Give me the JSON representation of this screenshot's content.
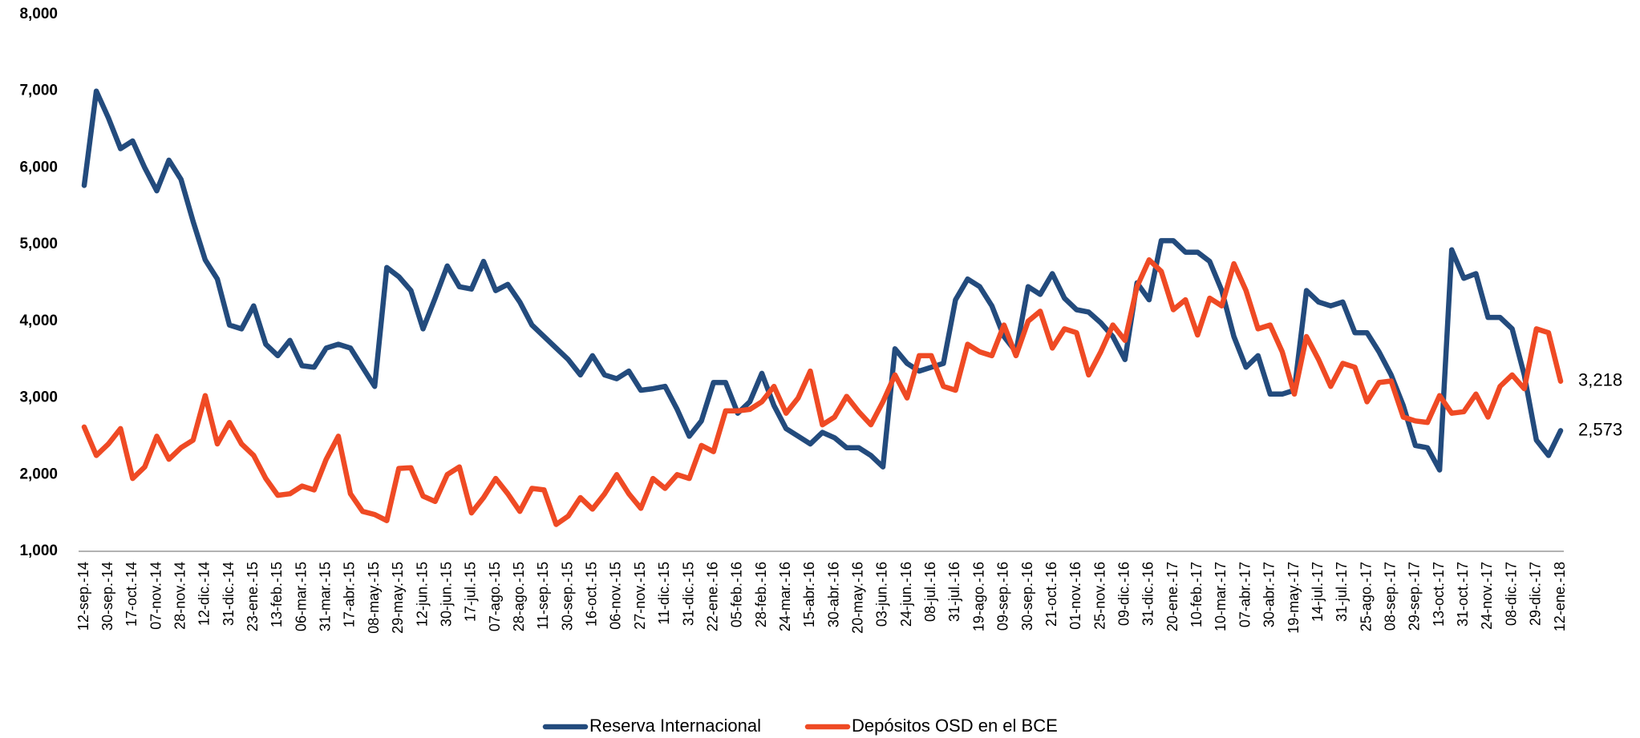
{
  "chart_data": {
    "type": "line",
    "categories": [
      "12-sep.-14",
      null,
      "30-sep.-14",
      null,
      "17-oct.-14",
      null,
      "07-nov.-14",
      null,
      "28-nov.-14",
      null,
      "12-dic.-14",
      null,
      "31-dic.-14",
      null,
      "23-ene.-15",
      null,
      "13-feb.-15",
      null,
      "06-mar.-15",
      null,
      "31-mar.-15",
      null,
      "17-abr.-15",
      null,
      "08-may.-15",
      null,
      "29-may.-15",
      null,
      "12-jun.-15",
      null,
      "30-jun.-15",
      null,
      "17-jul.-15",
      null,
      "07-ago.-15",
      null,
      "28-ago.-15",
      null,
      "11-sep.-15",
      null,
      "30-sep.-15",
      null,
      "16-oct.-15",
      null,
      "06-nov.-15",
      null,
      "27-nov.-15",
      null,
      "11-dic.-15",
      null,
      "31-dic.-15",
      null,
      "22-ene.-16",
      null,
      "05-feb.-16",
      null,
      "28-feb.-16",
      null,
      "24-mar.-16",
      null,
      "15-abr.-16",
      null,
      "30-abr.-16",
      null,
      "20-may.-16",
      null,
      "03-jun.-16",
      null,
      "24-jun.-16",
      null,
      "08-jul.-16",
      null,
      "31-jul.-16",
      null,
      "19-ago.-16",
      null,
      "09-sep.-16",
      null,
      "30-sep.-16",
      null,
      "21-oct.-16",
      null,
      "01-nov.-16",
      null,
      "25-nov.-16",
      null,
      "09-dic.-16",
      null,
      "31-dic.-16",
      null,
      "20-ene.-17",
      null,
      "10-feb.-17",
      null,
      "10-mar.-17",
      null,
      "07-abr.-17",
      null,
      "30-abr.-17",
      null,
      "19-may.-17",
      null,
      "14-jul.-17",
      null,
      "31-jul.-17",
      null,
      "25-ago.-17",
      null,
      "08-sep.-17",
      null,
      "29-sep.-17",
      null,
      "13-oct.-17",
      null,
      "31-oct.-17",
      null,
      "24-nov.-17",
      null,
      "08-dic.-17",
      null,
      "29-dic.-17",
      null,
      "12-ene.-18"
    ],
    "series": [
      {
        "name": "Reserva Internacional",
        "color": "#234b7d",
        "values": [
          5770,
          7000,
          6650,
          6250,
          6350,
          6000,
          5700,
          6100,
          5850,
          5300,
          4800,
          4550,
          3950,
          3900,
          4200,
          3700,
          3550,
          3750,
          3420,
          3400,
          3650,
          3700,
          3650,
          3400,
          3150,
          4700,
          4580,
          4400,
          3900,
          4300,
          4720,
          4450,
          4420,
          4780,
          4400,
          4480,
          4250,
          3950,
          3800,
          3650,
          3500,
          3300,
          3550,
          3300,
          3250,
          3350,
          3100,
          3120,
          3150,
          2850,
          2500,
          2700,
          3200,
          3200,
          2800,
          2950,
          3320,
          2900,
          2600,
          2500,
          2400,
          2550,
          2480,
          2350,
          2350,
          2250,
          2100,
          3640,
          3450,
          3350,
          3400,
          3450,
          4280,
          4550,
          4450,
          4200,
          3800,
          3600,
          4450,
          4350,
          4620,
          4300,
          4150,
          4120,
          3980,
          3800,
          3500,
          4500,
          4280,
          5050,
          5050,
          4900,
          4900,
          4780,
          4400,
          3800,
          3400,
          3550,
          3050,
          3050,
          3100,
          4400,
          4250,
          4200,
          4250,
          3850,
          3850,
          3600,
          3300,
          2900,
          2380,
          2350,
          2060,
          4930,
          4560,
          4620,
          4050,
          4050,
          3900,
          3300,
          2450,
          2250,
          2573
        ],
        "value_labels": [
          null,
          null,
          null,
          null,
          null,
          null,
          null,
          null,
          null,
          null,
          null,
          null,
          null,
          null,
          null,
          null,
          null,
          null,
          null,
          null,
          null,
          null,
          null,
          null,
          null,
          null,
          null,
          null,
          null,
          null,
          null,
          null,
          null,
          null,
          null,
          null,
          null,
          null,
          null,
          null,
          null,
          null,
          null,
          null,
          null,
          null,
          null,
          null,
          null,
          null,
          null,
          null,
          null,
          null,
          null,
          null,
          null,
          null,
          null,
          null,
          null,
          null,
          null,
          null,
          null,
          null,
          null,
          null,
          null,
          null,
          null,
          null,
          null,
          null,
          null,
          null,
          null,
          null,
          null,
          null,
          null,
          null,
          null,
          null,
          null,
          null,
          null,
          null,
          null,
          null,
          null,
          null,
          null,
          null,
          null,
          null,
          null,
          null,
          null,
          null,
          null,
          null,
          null,
          null,
          null,
          null,
          null,
          null,
          null,
          null,
          null,
          null,
          null,
          null,
          null,
          null,
          null,
          null,
          null,
          null,
          null,
          null,
          "2,573"
        ]
      },
      {
        "name": "Depósitos OSD en el BCE",
        "color": "#ef4a24",
        "values": [
          2620,
          2250,
          2400,
          2600,
          1950,
          2100,
          2500,
          2200,
          2350,
          2450,
          3030,
          2400,
          2680,
          2400,
          2250,
          1950,
          1730,
          1750,
          1850,
          1800,
          2200,
          2500,
          1750,
          1520,
          1480,
          1400,
          2080,
          2090,
          1720,
          1650,
          2000,
          2100,
          1500,
          1700,
          1950,
          1750,
          1520,
          1820,
          1800,
          1350,
          1460,
          1700,
          1550,
          1750,
          2000,
          1750,
          1560,
          1950,
          1820,
          2000,
          1950,
          2380,
          2300,
          2830,
          2830,
          2850,
          2950,
          3150,
          2800,
          3000,
          3350,
          2650,
          2750,
          3020,
          2820,
          2650,
          2950,
          3300,
          3000,
          3550,
          3550,
          3150,
          3100,
          3700,
          3600,
          3550,
          3950,
          3550,
          4000,
          4130,
          3650,
          3900,
          3850,
          3300,
          3600,
          3950,
          3750,
          4450,
          4800,
          4650,
          4150,
          4280,
          3820,
          4300,
          4200,
          4750,
          4400,
          3900,
          3950,
          3600,
          3050,
          3800,
          3500,
          3150,
          3450,
          3400,
          2950,
          3200,
          3220,
          2750,
          2700,
          2680,
          3030,
          2800,
          2820,
          3050,
          2750,
          3150,
          3300,
          3120,
          3900,
          3850,
          3218
        ],
        "value_labels": [
          null,
          null,
          null,
          null,
          null,
          null,
          null,
          null,
          null,
          null,
          null,
          null,
          null,
          null,
          null,
          null,
          null,
          null,
          null,
          null,
          null,
          null,
          null,
          null,
          null,
          null,
          null,
          null,
          null,
          null,
          null,
          null,
          null,
          null,
          null,
          null,
          null,
          null,
          null,
          null,
          null,
          null,
          null,
          null,
          null,
          null,
          null,
          null,
          null,
          null,
          null,
          null,
          null,
          null,
          null,
          null,
          null,
          null,
          null,
          null,
          null,
          null,
          null,
          null,
          null,
          null,
          null,
          null,
          null,
          null,
          null,
          null,
          null,
          null,
          null,
          null,
          null,
          null,
          null,
          null,
          null,
          null,
          null,
          null,
          null,
          null,
          null,
          null,
          null,
          null,
          null,
          null,
          null,
          null,
          null,
          null,
          null,
          null,
          null,
          null,
          null,
          null,
          null,
          null,
          null,
          null,
          null,
          null,
          null,
          null,
          null,
          null,
          null,
          null,
          null,
          null,
          null,
          null,
          null,
          null,
          null,
          null,
          "3,218"
        ]
      }
    ],
    "ylim": [
      1000,
      8000
    ],
    "yticks": [
      {
        "value": 1000,
        "label": "1,000"
      },
      {
        "value": 2000,
        "label": "2,000"
      },
      {
        "value": 3000,
        "label": "3,000"
      },
      {
        "value": 4000,
        "label": "4,000"
      },
      {
        "value": 5000,
        "label": "5,000"
      },
      {
        "value": 6000,
        "label": "6,000"
      },
      {
        "value": 7000,
        "label": "7,000"
      },
      {
        "value": 8000,
        "label": "8,000"
      }
    ],
    "grid": false,
    "legend": "bottom"
  }
}
